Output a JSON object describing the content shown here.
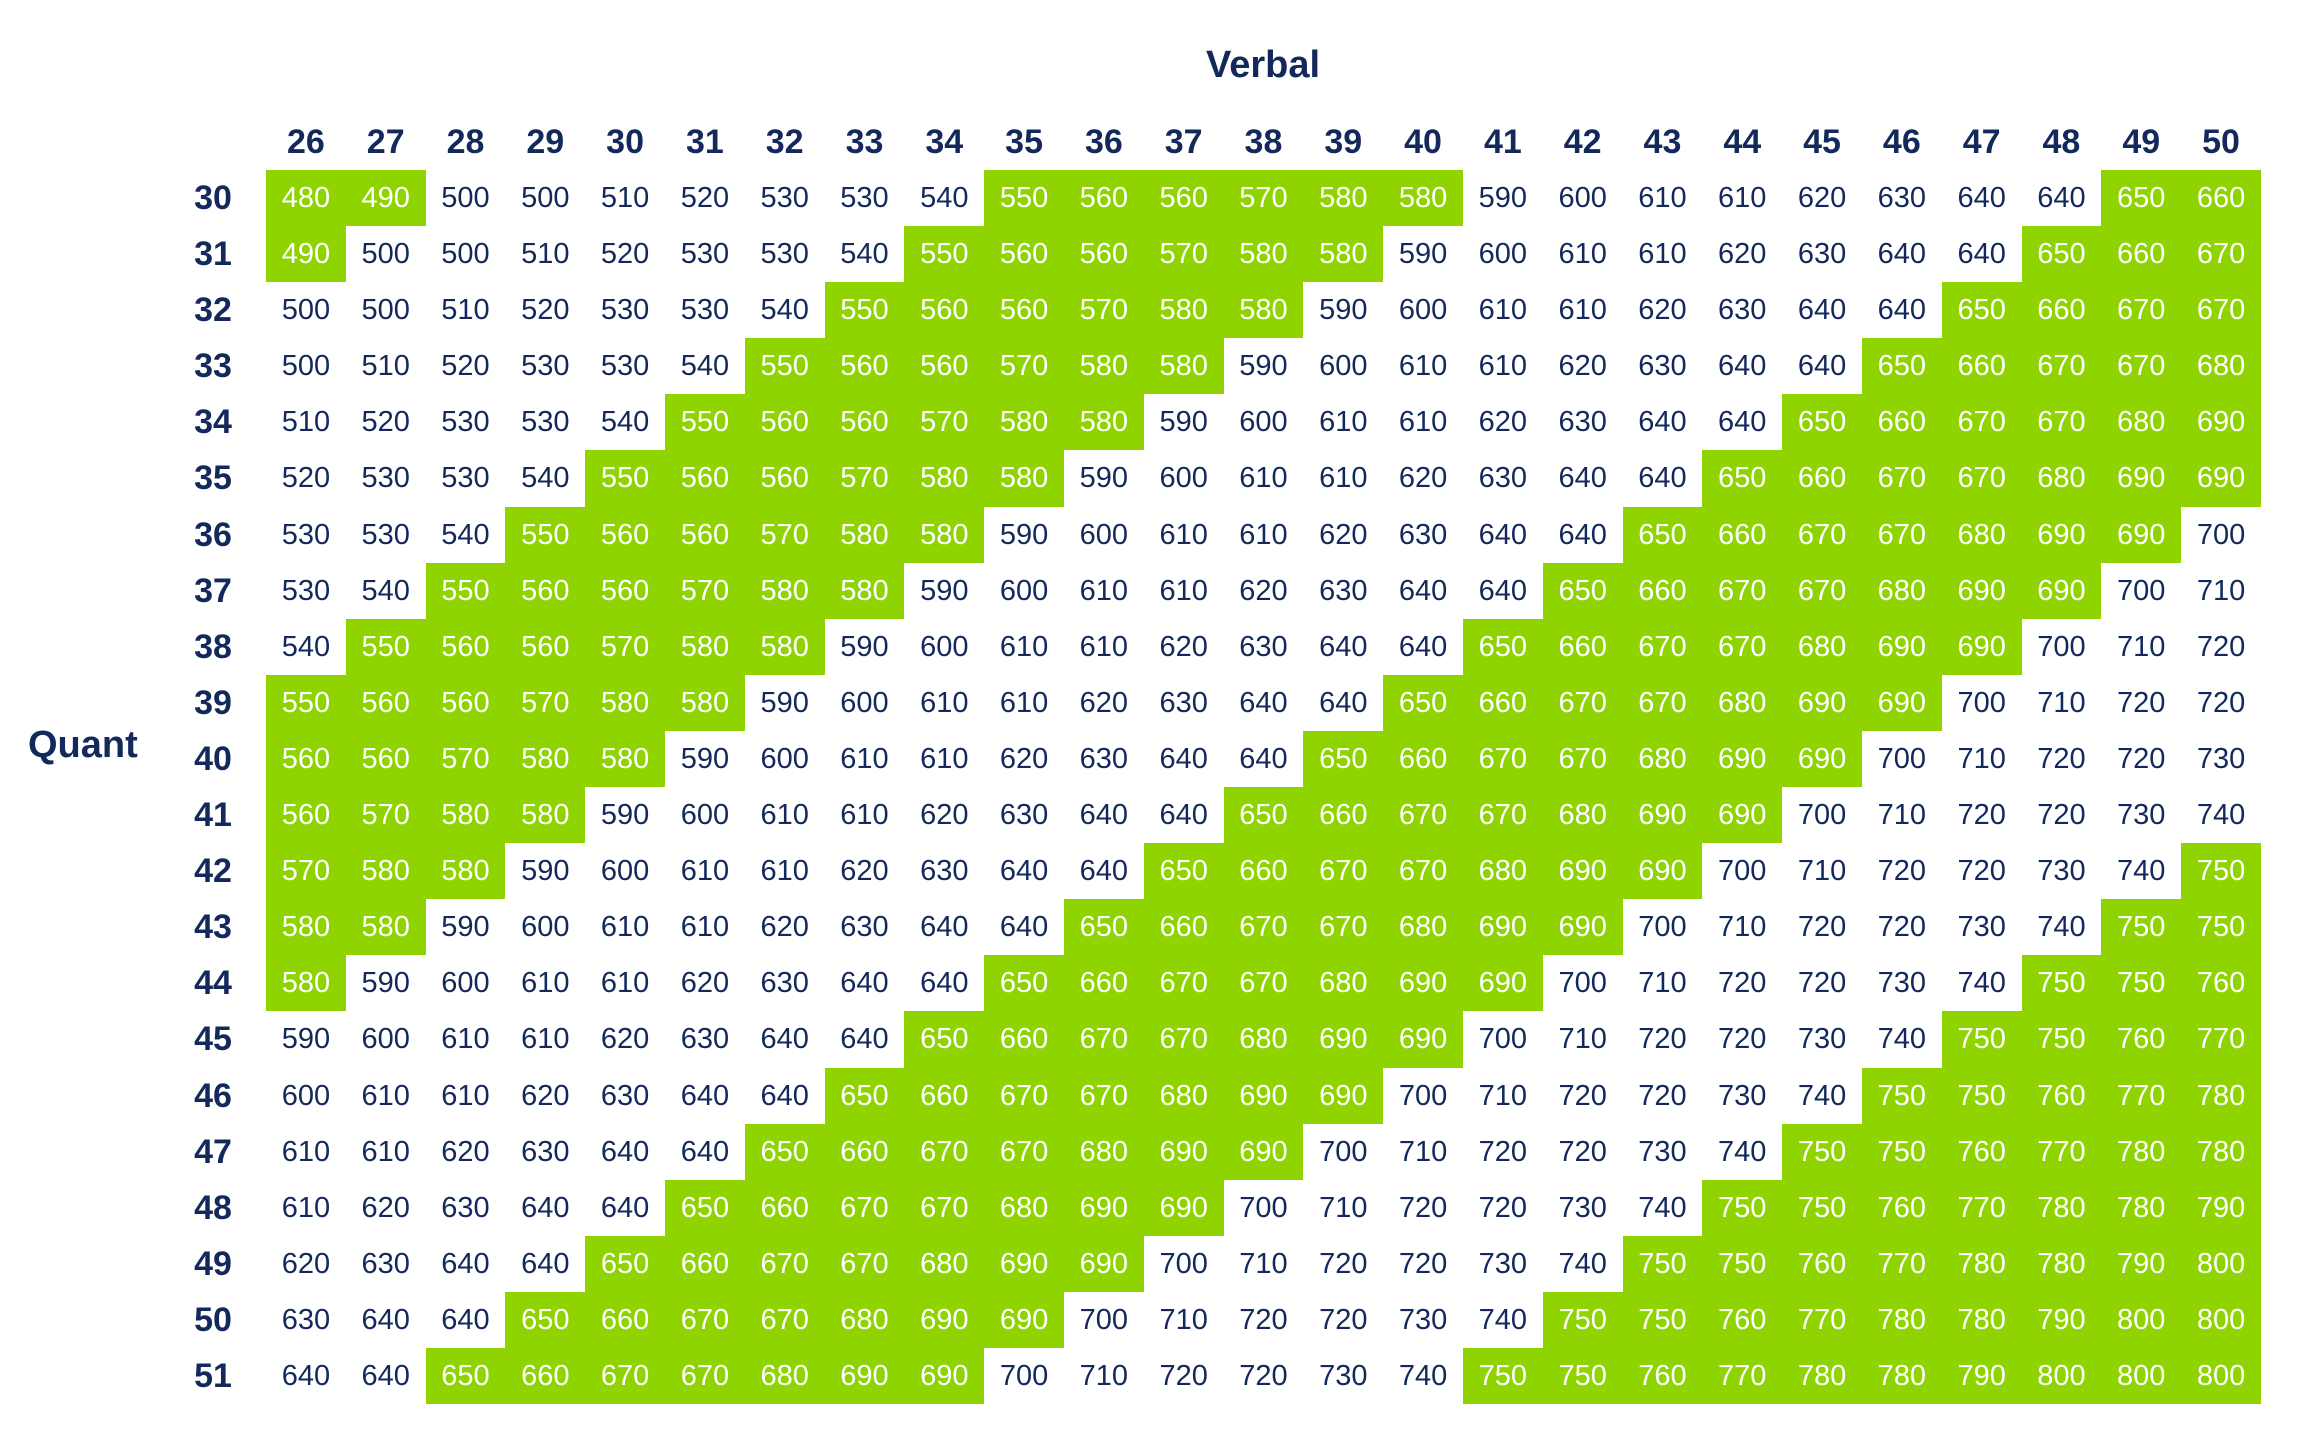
{
  "chart_data": {
    "type": "table",
    "xlabel": "Verbal",
    "ylabel": "Quant",
    "columns": [
      26,
      27,
      28,
      29,
      30,
      31,
      32,
      33,
      34,
      35,
      36,
      37,
      38,
      39,
      40,
      41,
      42,
      43,
      44,
      45,
      46,
      47,
      48,
      49,
      50
    ],
    "rows": [
      30,
      31,
      32,
      33,
      34,
      35,
      36,
      37,
      38,
      39,
      40,
      41,
      42,
      43,
      44,
      45,
      46,
      47,
      48,
      49,
      50,
      51
    ],
    "values": [
      [
        480,
        490,
        500,
        500,
        510,
        520,
        530,
        530,
        540,
        550,
        560,
        560,
        570,
        580,
        580,
        590,
        600,
        610,
        610,
        620,
        630,
        640,
        640,
        650,
        660
      ],
      [
        490,
        500,
        500,
        510,
        520,
        530,
        530,
        540,
        550,
        560,
        560,
        570,
        580,
        580,
        590,
        600,
        610,
        610,
        620,
        630,
        640,
        640,
        650,
        660,
        670
      ],
      [
        500,
        500,
        510,
        520,
        530,
        530,
        540,
        550,
        560,
        560,
        570,
        580,
        580,
        590,
        600,
        610,
        610,
        620,
        630,
        640,
        640,
        650,
        660,
        670,
        670
      ],
      [
        500,
        510,
        520,
        530,
        530,
        540,
        550,
        560,
        560,
        570,
        580,
        580,
        590,
        600,
        610,
        610,
        620,
        630,
        640,
        640,
        650,
        660,
        670,
        670,
        680
      ],
      [
        510,
        520,
        530,
        530,
        540,
        550,
        560,
        560,
        570,
        580,
        580,
        590,
        600,
        610,
        610,
        620,
        630,
        640,
        640,
        650,
        660,
        670,
        670,
        680,
        690
      ],
      [
        520,
        530,
        530,
        540,
        550,
        560,
        560,
        570,
        580,
        580,
        590,
        600,
        610,
        610,
        620,
        630,
        640,
        640,
        650,
        660,
        670,
        670,
        680,
        690,
        690
      ],
      [
        530,
        530,
        540,
        550,
        560,
        560,
        570,
        580,
        580,
        590,
        600,
        610,
        610,
        620,
        630,
        640,
        640,
        650,
        660,
        670,
        670,
        680,
        690,
        690,
        700
      ],
      [
        530,
        540,
        550,
        560,
        560,
        570,
        580,
        580,
        590,
        600,
        610,
        610,
        620,
        630,
        640,
        640,
        650,
        660,
        670,
        670,
        680,
        690,
        690,
        700,
        710
      ],
      [
        540,
        550,
        560,
        560,
        570,
        580,
        580,
        590,
        600,
        610,
        610,
        620,
        630,
        640,
        640,
        650,
        660,
        670,
        670,
        680,
        690,
        690,
        700,
        710,
        720
      ],
      [
        550,
        560,
        560,
        570,
        580,
        580,
        590,
        600,
        610,
        610,
        620,
        630,
        640,
        640,
        650,
        660,
        670,
        670,
        680,
        690,
        690,
        700,
        710,
        720,
        720
      ],
      [
        560,
        560,
        570,
        580,
        580,
        590,
        600,
        610,
        610,
        620,
        630,
        640,
        640,
        650,
        660,
        670,
        670,
        680,
        690,
        690,
        700,
        710,
        720,
        720,
        730
      ],
      [
        560,
        570,
        580,
        580,
        590,
        600,
        610,
        610,
        620,
        630,
        640,
        640,
        650,
        660,
        670,
        670,
        680,
        690,
        690,
        700,
        710,
        720,
        720,
        730,
        740
      ],
      [
        570,
        580,
        580,
        590,
        600,
        610,
        610,
        620,
        630,
        640,
        640,
        650,
        660,
        670,
        670,
        680,
        690,
        690,
        700,
        710,
        720,
        720,
        730,
        740,
        750
      ],
      [
        580,
        580,
        590,
        600,
        610,
        610,
        620,
        630,
        640,
        640,
        650,
        660,
        670,
        670,
        680,
        690,
        690,
        700,
        710,
        720,
        720,
        730,
        740,
        750,
        750
      ],
      [
        580,
        590,
        600,
        610,
        610,
        620,
        630,
        640,
        640,
        650,
        660,
        670,
        670,
        680,
        690,
        690,
        700,
        710,
        720,
        720,
        730,
        740,
        750,
        750,
        760
      ],
      [
        590,
        600,
        610,
        610,
        620,
        630,
        640,
        640,
        650,
        660,
        670,
        670,
        680,
        690,
        690,
        700,
        710,
        720,
        720,
        730,
        740,
        750,
        750,
        760,
        770
      ],
      [
        600,
        610,
        610,
        620,
        630,
        640,
        640,
        650,
        660,
        670,
        670,
        680,
        690,
        690,
        700,
        710,
        720,
        720,
        730,
        740,
        750,
        750,
        760,
        770,
        780
      ],
      [
        610,
        610,
        620,
        630,
        640,
        640,
        650,
        660,
        670,
        670,
        680,
        690,
        690,
        700,
        710,
        720,
        720,
        730,
        740,
        750,
        750,
        760,
        770,
        780,
        780
      ],
      [
        610,
        620,
        630,
        640,
        640,
        650,
        660,
        670,
        670,
        680,
        690,
        690,
        700,
        710,
        720,
        720,
        730,
        740,
        750,
        750,
        760,
        770,
        780,
        780,
        790
      ],
      [
        620,
        630,
        640,
        640,
        650,
        660,
        670,
        670,
        680,
        690,
        690,
        700,
        710,
        720,
        720,
        730,
        740,
        750,
        750,
        760,
        770,
        780,
        780,
        790,
        800
      ],
      [
        630,
        640,
        640,
        650,
        660,
        670,
        670,
        680,
        690,
        690,
        700,
        710,
        720,
        720,
        730,
        740,
        750,
        750,
        760,
        770,
        780,
        780,
        790,
        800,
        800
      ],
      [
        640,
        640,
        650,
        660,
        670,
        670,
        680,
        690,
        690,
        700,
        710,
        720,
        720,
        730,
        740,
        750,
        750,
        760,
        770,
        780,
        780,
        790,
        800,
        800,
        800
      ]
    ],
    "highlight_bands": [
      [
        480,
        490
      ],
      [
        550,
        580
      ],
      [
        650,
        690
      ],
      [
        750,
        800
      ]
    ],
    "colors": {
      "text": "#13295b",
      "highlight": "#8fd400",
      "highlight_text": "#ffffff"
    }
  }
}
